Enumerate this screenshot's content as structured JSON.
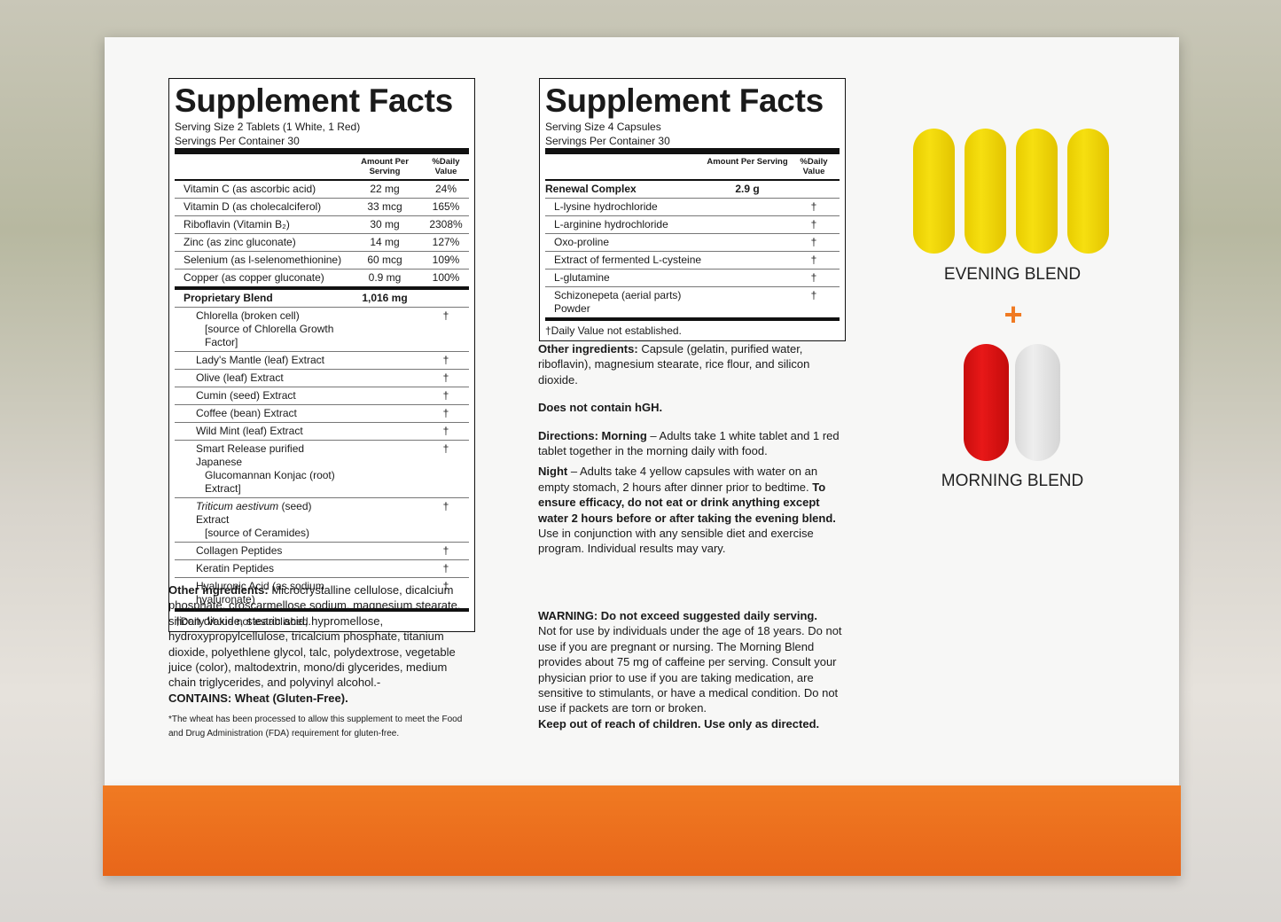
{
  "left_label": {
    "title": "Supplement Facts",
    "serving_size": "Serving Size 2 Tablets (1 White, 1 Red)",
    "servings": "Servings Per Container 30",
    "col_amount": "Amount Per Serving",
    "col_dv": "%Daily Value",
    "nutrients": [
      [
        "Vitamin C (as ascorbic acid)",
        "22 mg",
        "24%"
      ],
      [
        "Vitamin D (as cholecalciferol)",
        "33 mcg",
        "165%"
      ],
      [
        "Riboflavin (Vitamin B₂)",
        "30 mg",
        "2308%"
      ],
      [
        "Zinc (as zinc gluconate)",
        "14 mg",
        "127%"
      ],
      [
        "Selenium (as l-selenomethionine)",
        "60 mcg",
        "109%"
      ],
      [
        "Copper (as copper gluconate)",
        "0.9 mg",
        "100%"
      ]
    ],
    "blend": {
      "name": "Proprietary Blend",
      "amount": "1,016 mg"
    },
    "blend_items": [
      {
        "name": "Chlorella (broken cell)",
        "sub": "[source of Chlorella Growth Factor]",
        "dv": "†"
      },
      {
        "name": "Lady's Mantle (leaf) Extract",
        "dv": "†"
      },
      {
        "name": "Olive (leaf) Extract",
        "dv": "†"
      },
      {
        "name": "Cumin (seed) Extract",
        "dv": "†"
      },
      {
        "name": "Coffee (bean) Extract",
        "dv": "†"
      },
      {
        "name": "Wild Mint (leaf) Extract",
        "dv": "†"
      },
      {
        "name": "Smart Release purified Japanese",
        "sub": "Glucomannan Konjac (root) Extract]",
        "dv": "†"
      },
      {
        "italic": "Triticum aestivum",
        "name": "(seed) Extract",
        "sub": "[source of Ceramides)",
        "dv": "†"
      },
      {
        "name": "Collagen Peptides",
        "dv": "†"
      },
      {
        "name": "Keratin Peptides",
        "dv": "†"
      },
      {
        "name": "Hyaluronic Acid (as sodium hyaluronate)",
        "dv": "†"
      }
    ],
    "footnote": "†Daily Value not established."
  },
  "left_text": {
    "other_label": "Other ingredients:",
    "other": "Microcrystalline cellulose, dicalcium phosphate, croscarmellose sodium, magnesium stearate, silicon dioxide, stearic acid, hypromellose, hydroxypropylcellulose, tricalcium phosphate, titanium dioxide, polyethlene glycol, talc, polydextrose, vegetable juice (color), maltodextrin, mono/di glycerides, medium chain triglycerides, and polyvinyl alcohol.-",
    "contains": "CONTAINS: Wheat (Gluten-Free).",
    "note": "*The wheat has been processed to allow this supplement to meet the Food and Drug Administration (FDA) requirement for gluten-free."
  },
  "right_label": {
    "title": "Supplement Facts",
    "serving_size": "Serving Size 4 Capsules",
    "servings": "Servings Per Container 30",
    "col_amount": "Amount Per Serving",
    "col_dv": "%Daily Value",
    "complex": {
      "name": "Renewal Complex",
      "amount": "2.9 g"
    },
    "items": [
      [
        "L-lysine hydrochloride",
        "†"
      ],
      [
        "L-arginine hydrochloride",
        "†"
      ],
      [
        "Oxo-proline",
        "†"
      ],
      [
        "Extract of fermented L-cysteine",
        "†"
      ],
      [
        "L-glutamine",
        "†"
      ],
      [
        "Schizonepeta (aerial parts) Powder",
        "†"
      ]
    ],
    "footnote": "†Daily Value not established."
  },
  "right_text": {
    "other_label": "Other ingredients:",
    "other": "Capsule (gelatin, purified water, riboflavin), magnesium stearate, rice flour, and silicon dioxide.",
    "hgh": "Does not contain hGH.",
    "morning_label": "Directions: Morning",
    "morning": "– Adults take 1 white tablet and 1 red tablet together in the morning daily with food.",
    "night_label": "Night",
    "night": "– Adults take 4 yellow capsules with water on an empty stomach, 2 hours after dinner prior to bedtime.",
    "night_bold": "To ensure efficacy, do not eat or drink anything except water 2 hours before or after taking the evening blend.",
    "night_end": "Use in conjunction with any sensible diet and exercise program. Individual results may vary.",
    "warning_label": "WARNING: Do not exceed suggested daily serving.",
    "warning": "Not for use by individuals under the age of 18 years. Do not use if you are pregnant or nursing. The Morning Blend provides about 75 mg of caffeine per serving. Consult your physician prior to use if you are taking medication, are sensitive to stimulants, or have a medical condition. Do not use if packets are torn or broken.",
    "warning_end": "Keep out of reach of children. Use only as directed."
  },
  "blends": {
    "evening": "EVENING BLEND",
    "plus": "+",
    "morning": "MORNING BLEND"
  }
}
